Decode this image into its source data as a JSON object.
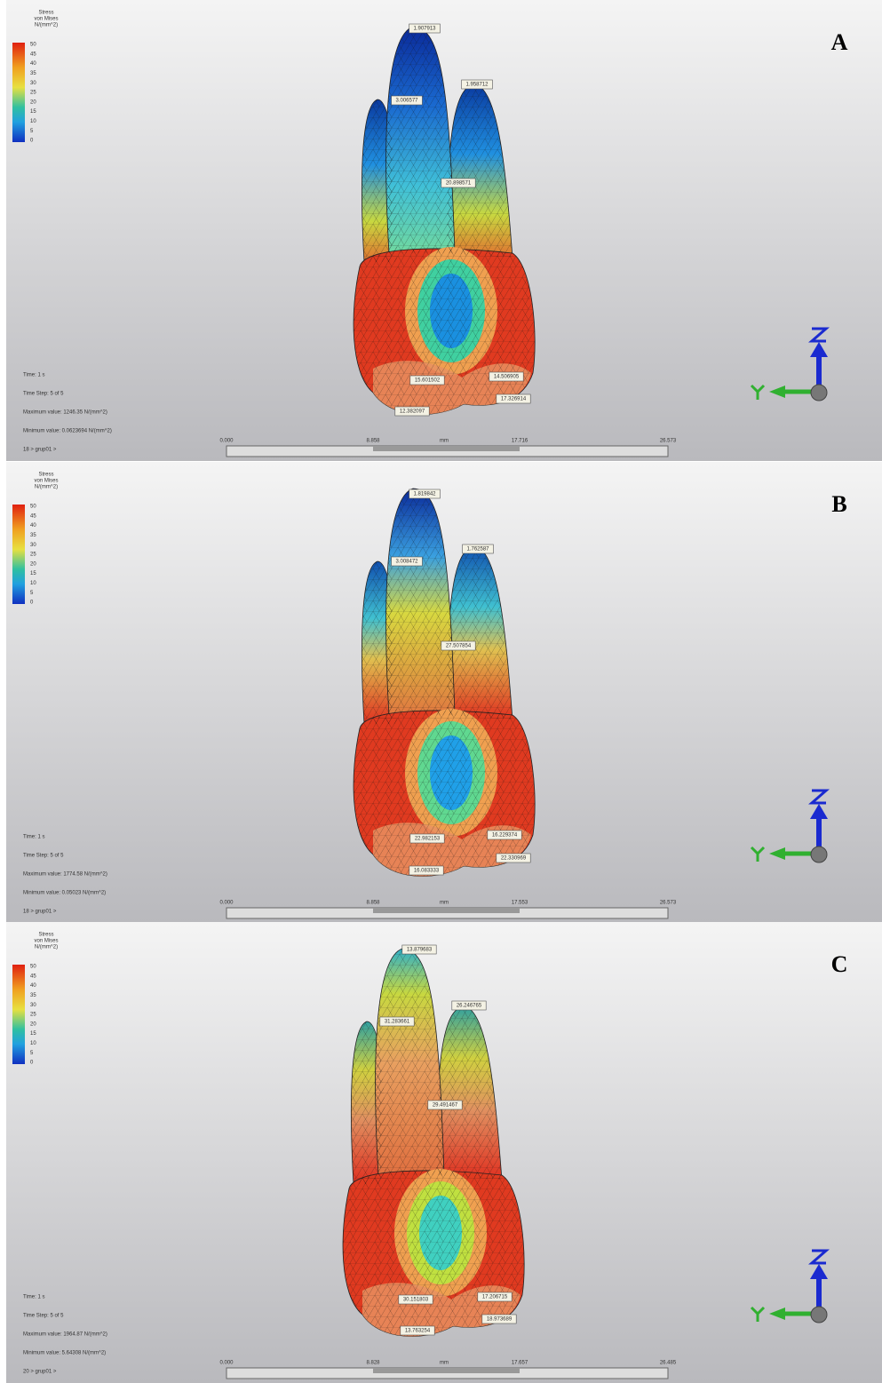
{
  "panels": [
    {
      "label": "A",
      "legend": {
        "title": [
          "Stress",
          "von Mises",
          "N/(mm^2)"
        ],
        "ticks": [
          "50",
          "45",
          "40",
          "35",
          "30",
          "25",
          "20",
          "15",
          "10",
          "5",
          "0"
        ]
      },
      "info": [
        "Time: 1 s",
        "Time Step: 5 of 5",
        "Maximum value: 1246.35 N/(mm^2)",
        "Minimum value: 0.0623694 N/(mm^2)",
        "18 > grup01 >"
      ],
      "scale": [
        "0.000",
        "8.858",
        "mm",
        "17.716",
        "26.573"
      ],
      "probes": [
        "1.907913",
        "1.958712",
        "3.006577",
        "20.898571",
        "15.601502",
        "14.506905",
        "12.382097",
        "17.326914"
      ]
    },
    {
      "label": "B",
      "legend": {
        "title": [
          "Stress",
          "von Mises",
          "N/(mm^2)"
        ],
        "ticks": [
          "50",
          "45",
          "40",
          "35",
          "30",
          "25",
          "20",
          "15",
          "10",
          "5",
          "0"
        ]
      },
      "info": [
        "Time: 1 s",
        "Time Step: 5 of 5",
        "Maximum value: 1774.58 N/(mm^2)",
        "Minimum value: 0.05023 N/(mm^2)",
        "18 > grup01 >"
      ],
      "scale": [
        "0.000",
        "8.858",
        "mm",
        "17.553",
        "26.573"
      ],
      "probes": [
        "1.819842",
        "1.762587",
        "3.008472",
        "27.507854",
        "22.982153",
        "16.229374",
        "16.083333",
        "22.330969"
      ]
    },
    {
      "label": "C",
      "legend": {
        "title": [
          "Stress",
          "von Mises",
          "N/(mm^2)"
        ],
        "ticks": [
          "50",
          "45",
          "40",
          "35",
          "30",
          "25",
          "20",
          "15",
          "10",
          "5",
          "0"
        ]
      },
      "info": [
        "Time: 1 s",
        "Time Step: 5 of 5",
        "Maximum value: 1964.87 N/(mm^2)",
        "Minimum value: 5.64308 N/(mm^2)",
        "20 > grup01 >"
      ],
      "scale": [
        "0.000",
        "8.828",
        "mm",
        "17.657",
        "26.485"
      ],
      "probes": [
        "13.879683",
        "26.246765",
        "31.283661",
        "29.491467",
        "30.151803",
        "17.206715",
        "13.763254",
        "18.973689"
      ]
    }
  ]
}
